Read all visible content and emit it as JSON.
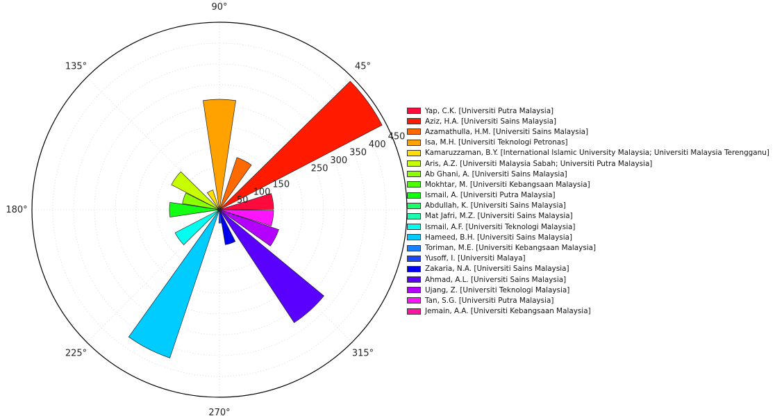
{
  "chart_data": {
    "type": "polar-bar",
    "angle_ticks": [
      "45°",
      "90°",
      "135°",
      "180°",
      "225°",
      "270°",
      "315°"
    ],
    "r_ticks": [
      50,
      100,
      150,
      250,
      300,
      350,
      400,
      450
    ],
    "rlim": [
      0,
      450
    ],
    "grid": true,
    "legend_position": "right",
    "series": [
      {
        "name": "Yap, C.K. [Universiti Putra Malaysia]",
        "value": 130,
        "angle_deg": 9,
        "color": "#ff0a3c"
      },
      {
        "name": "Aziz, H.A. [Universiti Sains Malaysia]",
        "value": 440,
        "angle_deg": 36,
        "color": "#ff1a00"
      },
      {
        "name": "Azamathulla, H.M. [Universiti Sains Malaysia]",
        "value": 132,
        "angle_deg": 63,
        "color": "#ff6a00"
      },
      {
        "name": "Isa, M.H. [Universiti Teknologi Petronas]",
        "value": 265,
        "angle_deg": 90,
        "color": "#ffa200"
      },
      {
        "name": "Kamaruzzaman, B.Y. [International Islamic University Malaysia; Universiti Malaysia Terengganu]",
        "value": 50,
        "angle_deg": 117,
        "color": "#ffde00"
      },
      {
        "name": "Aris, A.Z. [Universiti Malaysia Sabah; Universiti Putra Malaysia]",
        "value": 130,
        "angle_deg": 144,
        "color": "#c8ff00"
      },
      {
        "name": "Ab Ghani, A. [Universiti Sains Malaysia]",
        "value": 90,
        "angle_deg": 162,
        "color": "#8cff00"
      },
      {
        "name": "Mokhtar, M. [Universiti Kebangsaan Malaysia]",
        "value": 4,
        "angle_deg": 171,
        "color": "#4dff00"
      },
      {
        "name": "Ismail, A. [Universiti Putra Malaysia]",
        "value": 120,
        "angle_deg": 180,
        "color": "#14ff14"
      },
      {
        "name": "Abdullah, K. [Universiti Sains Malaysia]",
        "value": 4,
        "angle_deg": 189,
        "color": "#1aff66"
      },
      {
        "name": "Mat Jafri, M.Z. [Universiti Sains Malaysia]",
        "value": 4,
        "angle_deg": 198,
        "color": "#1affb0"
      },
      {
        "name": "Ismail, A.F. [Universiti Teknologi Malaysia]",
        "value": 120,
        "angle_deg": 216,
        "color": "#00ffee"
      },
      {
        "name": "Hameed, B.H. [Universiti Sains Malaysia]",
        "value": 375,
        "angle_deg": 243,
        "color": "#00ccff"
      },
      {
        "name": "Toriman, M.E. [Universiti Kebangsaan Malaysia]",
        "value": 4,
        "angle_deg": 260,
        "color": "#1a80ff"
      },
      {
        "name": "Yusoff, I. [Universiti Malaya]",
        "value": 32,
        "angle_deg": 276,
        "color": "#1a46ff"
      },
      {
        "name": "Zakaria, N.A. [Universiti Sains Malaysia]",
        "value": 85,
        "angle_deg": 288,
        "color": "#0000ee"
      },
      {
        "name": "Ahmad, A.L. [Universiti Sains Malaysia]",
        "value": 325,
        "angle_deg": 312,
        "color": "#5a00ff"
      },
      {
        "name": "Ujang, Z. [Universiti Teknologi Malaysia]",
        "value": 150,
        "angle_deg": 333,
        "color": "#b400ff"
      },
      {
        "name": "Tan, S.G. [Universiti Putra Malaysia]",
        "value": 130,
        "angle_deg": 351,
        "color": "#ff14ff"
      },
      {
        "name": "Jemain, A.A. [Universiti Kebangsaan Malaysia]",
        "value": 4,
        "angle_deg": 356,
        "color": "#ff14a0"
      }
    ]
  }
}
